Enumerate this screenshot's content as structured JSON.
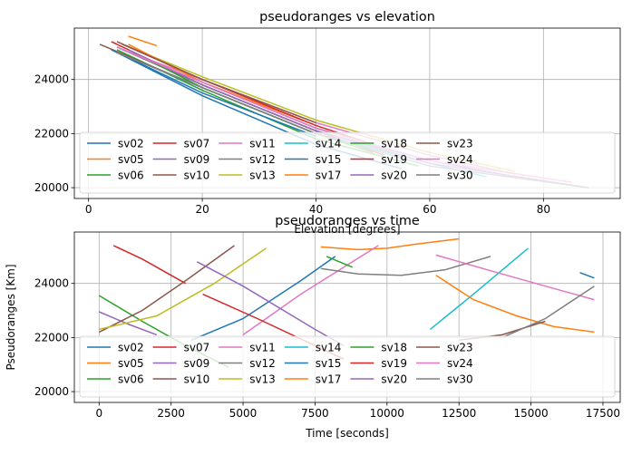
{
  "chart_data": [
    {
      "type": "line",
      "title": "pseudoranges vs elevation",
      "xlabel": "Elevation [degrees]",
      "ylabel": "",
      "xlim": [
        -2.5,
        93.5
      ],
      "ylim": [
        19600,
        25900
      ],
      "xticks": [
        0,
        20,
        40,
        60,
        80
      ],
      "yticks": [
        20000,
        22000,
        24000
      ],
      "grid": true,
      "legend": "lower center, 8 columns",
      "series": [
        {
          "name": "sv02",
          "color": "#1f77b4",
          "x": [
            5,
            20,
            40,
            55
          ],
          "y": [
            25000,
            23400,
            21600,
            20700
          ]
        },
        {
          "name": "sv05",
          "color": "#ff7f0e",
          "x": [
            7,
            12
          ],
          "y": [
            25600,
            25250
          ]
        },
        {
          "name": "sv06",
          "color": "#2ca02c",
          "x": [
            5,
            20,
            40,
            58
          ],
          "y": [
            25100,
            23600,
            21800,
            20800
          ]
        },
        {
          "name": "sv07",
          "color": "#d62728",
          "x": [
            4,
            20,
            40,
            52
          ],
          "y": [
            25400,
            23800,
            22100,
            21200
          ]
        },
        {
          "name": "sv09",
          "color": "#9467bd",
          "x": [
            5,
            20,
            40,
            60,
            75
          ],
          "y": [
            25200,
            23900,
            22200,
            21000,
            20400
          ]
        },
        {
          "name": "sv10",
          "color": "#8c564b",
          "x": [
            2,
            20,
            40
          ],
          "y": [
            25300,
            23700,
            22000
          ]
        },
        {
          "name": "sv11",
          "color": "#e377c2",
          "x": [
            6,
            20,
            40,
            60,
            75
          ],
          "y": [
            25100,
            24000,
            22400,
            21200,
            20500
          ]
        },
        {
          "name": "sv12",
          "color": "#7f7f7f",
          "x": [
            5,
            20,
            40,
            60
          ],
          "y": [
            25200,
            23800,
            22100,
            21000
          ]
        },
        {
          "name": "sv13",
          "color": "#bcbd22",
          "x": [
            6,
            20,
            40,
            60,
            75
          ],
          "y": [
            25300,
            24100,
            22500,
            21300,
            20600
          ]
        },
        {
          "name": "sv14",
          "color": "#17becf",
          "x": [
            5,
            20,
            40,
            60,
            70
          ],
          "y": [
            25000,
            23700,
            22000,
            20900,
            20400
          ]
        },
        {
          "name": "sv15",
          "color": "#1f77b4",
          "x": [
            4,
            20,
            40
          ],
          "y": [
            25100,
            23500,
            21900
          ]
        },
        {
          "name": "sv17",
          "color": "#ff7f0e",
          "x": [
            7,
            20,
            40
          ],
          "y": [
            25300,
            23900,
            22300
          ]
        },
        {
          "name": "sv18",
          "color": "#2ca02c",
          "x": [
            8,
            20,
            40,
            50
          ],
          "y": [
            25000,
            23700,
            22000,
            21300
          ]
        },
        {
          "name": "sv19",
          "color": "#d62728",
          "x": [
            6,
            20,
            40,
            50
          ],
          "y": [
            25300,
            24000,
            22300,
            21600
          ]
        },
        {
          "name": "sv20",
          "color": "#9467bd",
          "x": [
            7,
            20,
            40,
            60,
            88
          ],
          "y": [
            25100,
            23800,
            22100,
            20900,
            20000
          ]
        },
        {
          "name": "sv23",
          "color": "#8c564b",
          "x": [
            5,
            20,
            40
          ],
          "y": [
            25400,
            24000,
            22400
          ]
        },
        {
          "name": "sv24",
          "color": "#e377c2",
          "x": [
            5,
            20,
            40,
            60,
            85
          ],
          "y": [
            25200,
            23900,
            22200,
            21000,
            20200
          ]
        },
        {
          "name": "sv30",
          "color": "#7f7f7f",
          "x": [
            5,
            20,
            40,
            60,
            88
          ],
          "y": [
            25000,
            23700,
            22000,
            20800,
            20000
          ]
        }
      ]
    },
    {
      "type": "line",
      "title": "pseudoranges vs time",
      "xlabel": "Time [seconds]",
      "ylabel": "Pseudoranges [Km]",
      "xlim": [
        -860,
        18100
      ],
      "ylim": [
        19600,
        25900
      ],
      "xticks": [
        0,
        2500,
        5000,
        7500,
        10000,
        12500,
        15000,
        17500
      ],
      "yticks": [
        20000,
        22000,
        24000
      ],
      "grid": true,
      "legend": "lower center, 8 columns",
      "series": [
        {
          "name": "sv02",
          "color": "#1f77b4",
          "x": [
            3200,
            5000,
            7000,
            8200
          ],
          "y": [
            21900,
            22700,
            24100,
            25000
          ]
        },
        {
          "name": "sv05",
          "color": "#ff7f0e",
          "x": [
            7700,
            9000,
            10000,
            11000,
            12500
          ],
          "y": [
            25350,
            25250,
            25300,
            25450,
            25650
          ]
        },
        {
          "name": "sv06",
          "color": "#2ca02c",
          "x": [
            0,
            1500,
            3000,
            4500
          ],
          "y": [
            23550,
            22600,
            21700,
            20900
          ]
        },
        {
          "name": "sv07",
          "color": "#d62728",
          "x": [
            500,
            1500,
            3000
          ],
          "y": [
            25400,
            24900,
            24000
          ]
        },
        {
          "name": "sv09",
          "color": "#9467bd",
          "x": [
            0,
            1000,
            2000
          ],
          "y": [
            22950,
            22500,
            22100
          ]
        },
        {
          "name": "sv10",
          "color": "#8c564b",
          "x": [
            0,
            1500,
            3000,
            4700
          ],
          "y": [
            22200,
            23000,
            24100,
            25400
          ]
        },
        {
          "name": "sv11",
          "color": "#e377c2",
          "x": [
            5000,
            7000,
            9700
          ],
          "y": [
            22100,
            23600,
            25400
          ]
        },
        {
          "name": "sv12",
          "color": "#7f7f7f",
          "x": [
            7700,
            9000,
            10500,
            12000,
            13600
          ],
          "y": [
            24550,
            24350,
            24300,
            24500,
            25000
          ]
        },
        {
          "name": "sv13",
          "color": "#bcbd22",
          "x": [
            0,
            2000,
            4000,
            5800
          ],
          "y": [
            22300,
            22800,
            24000,
            25300
          ]
        },
        {
          "name": "sv14",
          "color": "#17becf",
          "x": [
            11500,
            13000,
            14900
          ],
          "y": [
            22300,
            23600,
            25300
          ]
        },
        {
          "name": "sv15",
          "color": "#1f77b4",
          "x": [
            16700,
            17200
          ],
          "y": [
            24400,
            24200
          ]
        },
        {
          "name": "sv17",
          "color": "#ff7f0e",
          "x": [
            11700,
            13000,
            14500,
            15800,
            17200
          ],
          "y": [
            24300,
            23400,
            22800,
            22400,
            22200
          ]
        },
        {
          "name": "sv18",
          "color": "#2ca02c",
          "x": [
            7900,
            8800
          ],
          "y": [
            25000,
            24600
          ]
        },
        {
          "name": "sv19",
          "color": "#d62728",
          "x": [
            3600,
            5500,
            7500,
            8500
          ],
          "y": [
            23600,
            22700,
            21700,
            21200
          ]
        },
        {
          "name": "sv20",
          "color": "#9467bd",
          "x": [
            3400,
            5000,
            7500,
            8500
          ],
          "y": [
            24800,
            23900,
            22300,
            21700
          ]
        },
        {
          "name": "sv23",
          "color": "#8c564b",
          "x": [
            12500,
            14000,
            15500
          ],
          "y": [
            21900,
            22100,
            22600
          ]
        },
        {
          "name": "sv24",
          "color": "#e377c2",
          "x": [
            11700,
            13500,
            15500,
            17200
          ],
          "y": [
            25050,
            24500,
            23900,
            23400
          ]
        },
        {
          "name": "sv30",
          "color": "#7f7f7f",
          "x": [
            14000,
            15500,
            17200
          ],
          "y": [
            22000,
            22700,
            23900
          ]
        }
      ]
    }
  ]
}
